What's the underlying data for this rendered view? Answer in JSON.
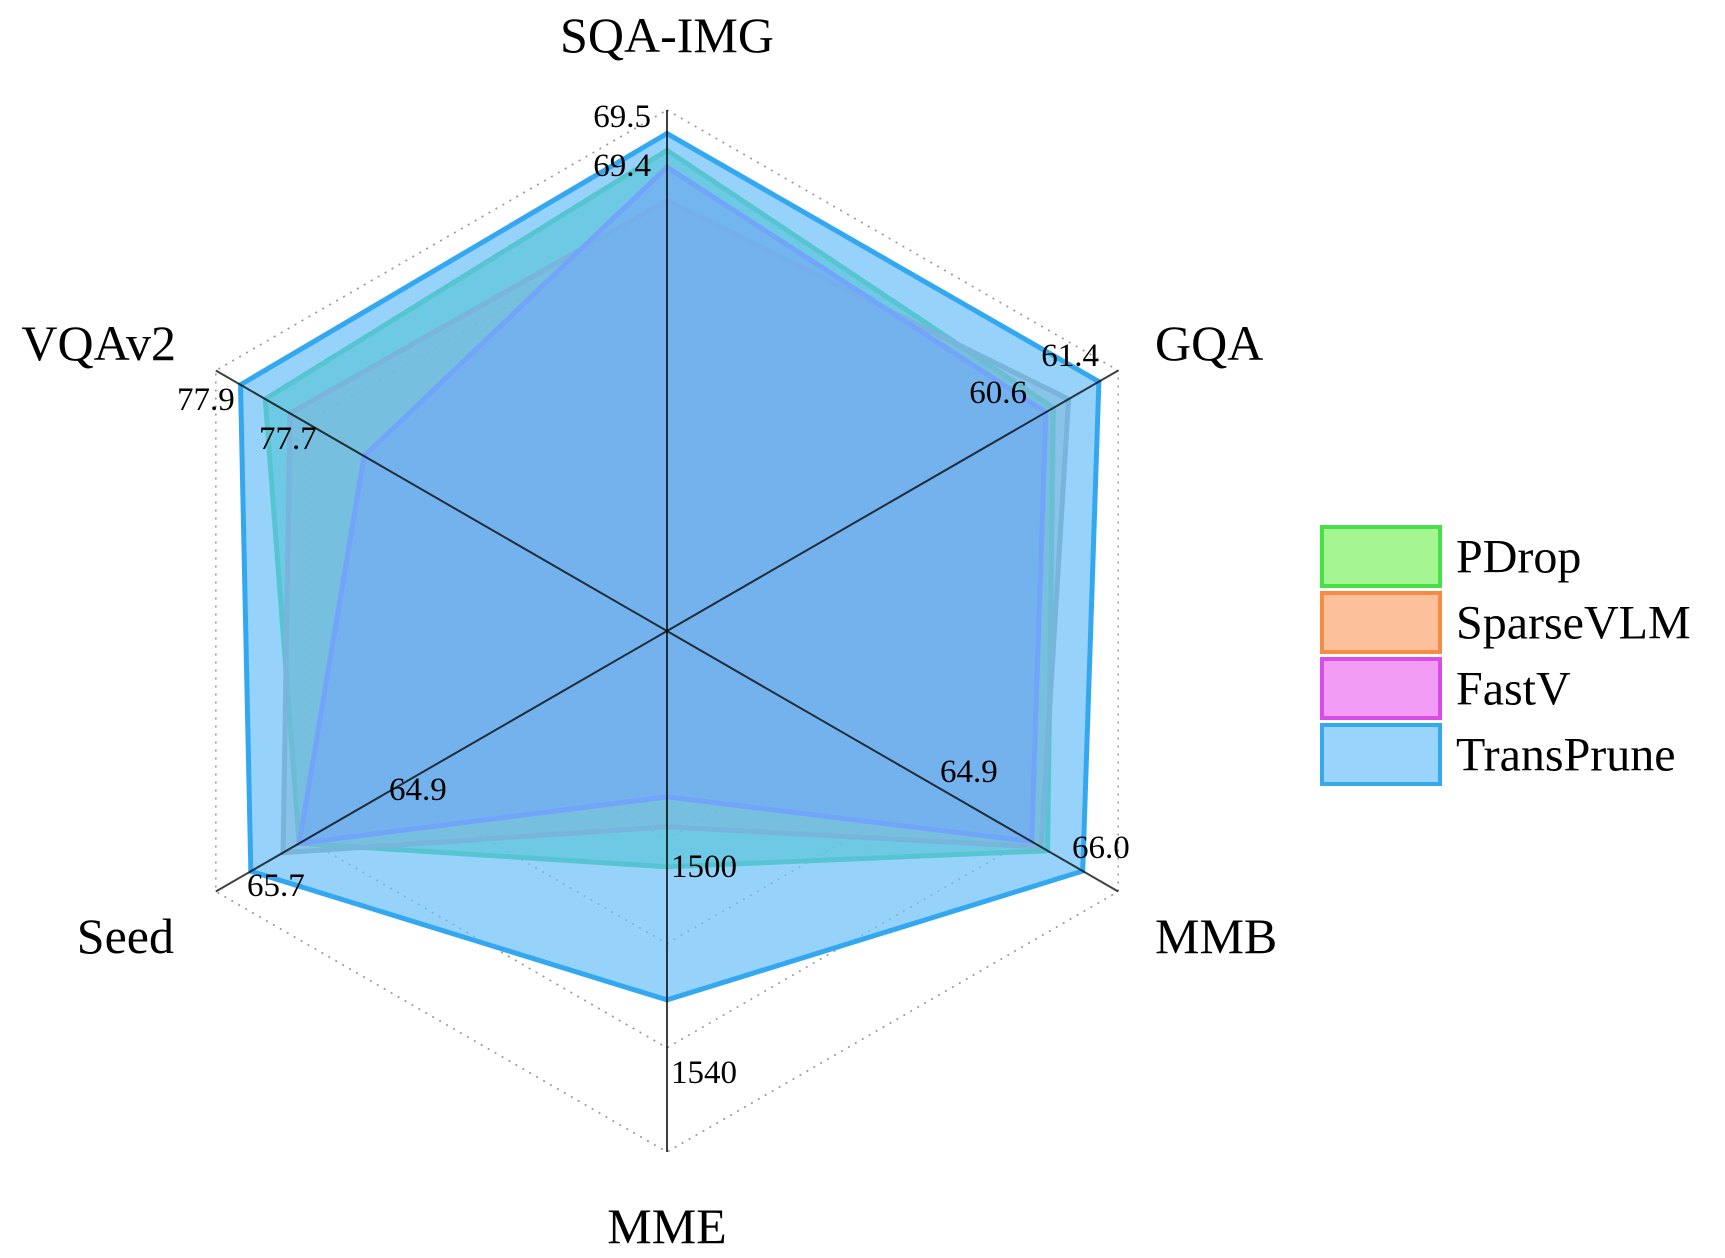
{
  "chart_data": {
    "type": "radar",
    "axes": [
      "SQA-IMG",
      "GQA",
      "MMB",
      "MME",
      "Seed",
      "VQAv2"
    ],
    "axis_value_labels": {
      "SQA-IMG": [
        "69.5",
        "69.4"
      ],
      "GQA": [
        "61.4",
        "60.6"
      ],
      "MMB": [
        "66.0",
        "64.9"
      ],
      "MME": [
        "1540",
        "1500"
      ],
      "Seed": [
        "65.7",
        "64.9"
      ],
      "VQAv2": [
        "77.9",
        "77.7"
      ]
    },
    "series": [
      {
        "name": "PDrop",
        "values": [
          69.4,
          60.2,
          64.9,
          1500,
          64.5,
          77.7
        ],
        "line_color": "#2ed47a",
        "fill_color": "#3ed6a0",
        "fill_opacity": 0.7,
        "legend_fill": "#a6f593",
        "legend_edge": "#47e047"
      },
      {
        "name": "SparseVLM",
        "values": [
          69.1,
          60.6,
          64.7,
          1488,
          64.9,
          77.5
        ],
        "line_color": "#999999",
        "fill_color": "#b09c8c",
        "fill_opacity": 0.5,
        "legend_fill": "#fcc09b",
        "legend_edge": "#f58b45"
      },
      {
        "name": "FastV",
        "values": [
          69.3,
          60.0,
          64.4,
          1479,
          64.5,
          76.9
        ],
        "line_color": "#8766ff",
        "fill_color": "#8a85e8",
        "fill_opacity": 0.75,
        "legend_fill": "#f29cf5",
        "legend_edge": "#d94ce8"
      },
      {
        "name": "TransPrune",
        "values": [
          69.5,
          61.4,
          66.0,
          1540,
          65.7,
          77.9
        ],
        "line_color": "#33a8f0",
        "fill_color": "#69bff7",
        "fill_opacity": 0.7,
        "legend_fill": "#98d4fb",
        "legend_edge": "#38a8ec"
      }
    ],
    "legend": {
      "position": "right",
      "entries": [
        "PDrop",
        "SparseVLM",
        "FastV",
        "TransPrune"
      ]
    },
    "grid": true
  }
}
